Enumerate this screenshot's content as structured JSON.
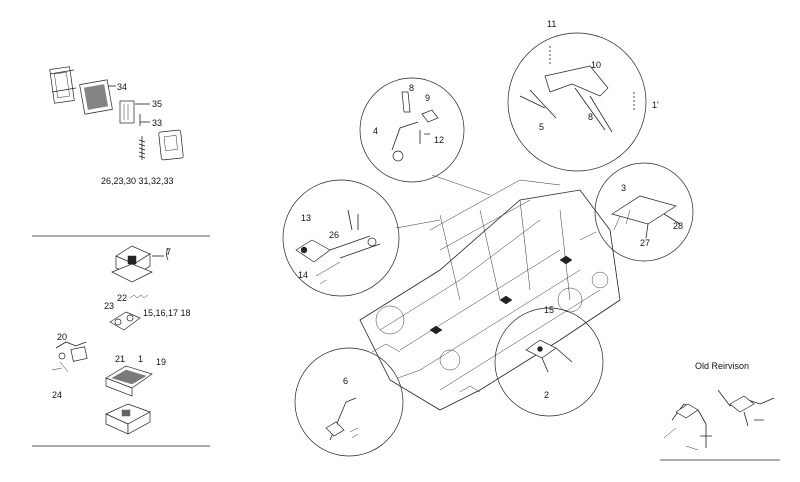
{
  "title_old": "Old Reirvison",
  "top_left_group": {
    "labels": {
      "n34": "34",
      "n35": "35",
      "n33": "33",
      "list": "26,23,30 31,32,33"
    }
  },
  "middle_left_group": {
    "labels": {
      "n7": "7",
      "n22": "22",
      "n23": "23",
      "list": "15,16,17 18",
      "n20": "20",
      "n21": "21",
      "n1": "1",
      "n19": "19",
      "n24": "24"
    }
  },
  "top_circle": {
    "labels": {
      "n11": "11",
      "n10": "10",
      "n11b": "1'",
      "n5": "5",
      "n8": "8"
    }
  },
  "upper_mid_circle": {
    "labels": {
      "n8": "8",
      "n9": "9",
      "n4": "4",
      "n12": "12"
    }
  },
  "left_circle": {
    "labels": {
      "n13": "13",
      "n26": "26",
      "n14": "14"
    }
  },
  "right_circle": {
    "labels": {
      "n3": "3",
      "n27": "27",
      "n28": "28"
    }
  },
  "lower_right_circle": {
    "labels": {
      "n15": "15",
      "n2": "2"
    }
  },
  "lower_left_circle": {
    "labels": {
      "n6": "6"
    }
  }
}
